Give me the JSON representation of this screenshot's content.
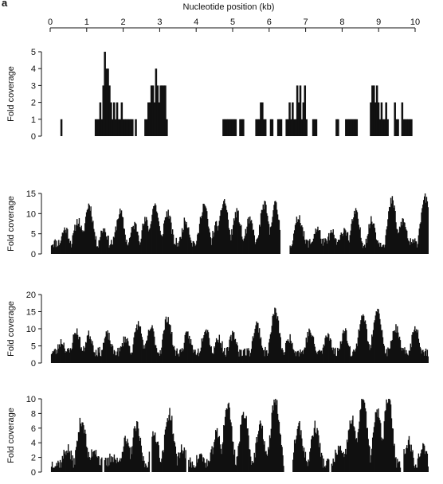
{
  "figure": {
    "panel_label": "a",
    "color": "#111111"
  },
  "chart_data": [
    {
      "type": "bar",
      "title": "",
      "xlabel": "Nucleotide position (kb)",
      "ylabel": "Fold coverage",
      "xlim": [
        0,
        10.5
      ],
      "ylim": [
        0,
        5
      ],
      "xticks": [
        0,
        1,
        2,
        3,
        4,
        5,
        6,
        7,
        8,
        9,
        10
      ],
      "yticks": [
        0,
        1,
        2,
        3,
        4,
        5
      ],
      "segments": [
        [
          0.28,
          0.42,
          [
            1
          ]
        ],
        [
          1.22,
          1.31,
          [
            1,
            1,
            1,
            2,
            1,
            3,
            5,
            4,
            4,
            3,
            2,
            1,
            2,
            1,
            2,
            1,
            1,
            2,
            1,
            1,
            1,
            1,
            1,
            1,
            1
          ]
        ],
        [
          2.32,
          2.42,
          [
            1
          ]
        ],
        [
          2.58,
          3.28,
          [
            1,
            1,
            2,
            2,
            3,
            3,
            2,
            4,
            3,
            2,
            3,
            3,
            3,
            3,
            1
          ]
        ],
        [
          4.72,
          5.12,
          [
            1,
            1,
            1,
            1,
            1,
            1,
            1,
            1,
            1
          ]
        ],
        [
          5.18,
          5.32,
          [
            1,
            1,
            1
          ]
        ],
        [
          5.62,
          5.95,
          [
            1,
            1,
            1,
            2,
            2,
            1,
            1
          ]
        ],
        [
          6.02,
          6.12,
          [
            1,
            1
          ]
        ],
        [
          6.22,
          6.38,
          [
            1,
            1,
            1
          ]
        ],
        [
          6.45,
          7.05,
          [
            1,
            1,
            2,
            1,
            2,
            1,
            1,
            3,
            2,
            3,
            1,
            2,
            3,
            1
          ]
        ],
        [
          7.18,
          7.35,
          [
            1,
            1,
            1
          ]
        ],
        [
          7.82,
          7.92,
          [
            1,
            1
          ]
        ],
        [
          8.08,
          8.48,
          [
            1,
            1,
            1,
            1,
            1,
            1,
            1,
            1
          ]
        ],
        [
          8.76,
          9.32,
          [
            2,
            3,
            3,
            2,
            3,
            2,
            1,
            2,
            1,
            1,
            2,
            1
          ]
        ],
        [
          9.42,
          9.55,
          [
            2,
            1,
            1
          ]
        ],
        [
          9.62,
          9.98,
          [
            2,
            1,
            1,
            1,
            1,
            1,
            1
          ]
        ]
      ]
    },
    {
      "type": "area",
      "title": "",
      "ylabel": "Fold coverage",
      "xlim": [
        0,
        10.5
      ],
      "ylim": [
        0,
        15
      ],
      "yticks": [
        0,
        5,
        10,
        15
      ],
      "gaps": [
        [
          6.28,
          6.55
        ]
      ],
      "seed": 11,
      "peaks": [
        [
          0.4,
          6
        ],
        [
          0.75,
          8
        ],
        [
          1.05,
          12
        ],
        [
          1.45,
          6
        ],
        [
          1.9,
          10
        ],
        [
          2.3,
          7
        ],
        [
          2.6,
          8
        ],
        [
          2.85,
          12
        ],
        [
          3.2,
          10
        ],
        [
          3.7,
          8
        ],
        [
          4.2,
          12
        ],
        [
          4.55,
          7
        ],
        [
          4.75,
          13
        ],
        [
          5.1,
          10
        ],
        [
          5.45,
          8
        ],
        [
          5.85,
          12
        ],
        [
          6.15,
          12
        ],
        [
          6.8,
          9
        ],
        [
          7.3,
          6
        ],
        [
          7.7,
          5
        ],
        [
          8.05,
          6
        ],
        [
          8.35,
          10
        ],
        [
          8.8,
          8
        ],
        [
          9.35,
          13
        ],
        [
          9.65,
          8
        ],
        [
          10.25,
          14
        ]
      ],
      "base": 2.5,
      "noise": 2.5
    },
    {
      "type": "area",
      "title": "",
      "ylabel": "Fold coverage",
      "xlim": [
        0,
        10.5
      ],
      "ylim": [
        0,
        20
      ],
      "yticks": [
        0,
        5,
        10,
        15,
        20
      ],
      "gaps": [],
      "seed": 23,
      "peaks": [
        [
          0.3,
          6
        ],
        [
          0.7,
          9
        ],
        [
          1.05,
          8
        ],
        [
          1.55,
          8
        ],
        [
          2.05,
          7
        ],
        [
          2.4,
          11
        ],
        [
          2.75,
          10
        ],
        [
          3.2,
          13
        ],
        [
          3.75,
          8
        ],
        [
          4.25,
          10
        ],
        [
          4.6,
          7
        ],
        [
          5.0,
          8
        ],
        [
          5.65,
          11
        ],
        [
          6.15,
          15
        ],
        [
          6.55,
          7
        ],
        [
          7.1,
          9
        ],
        [
          7.6,
          8
        ],
        [
          8.05,
          9
        ],
        [
          8.55,
          14
        ],
        [
          8.95,
          16
        ],
        [
          9.45,
          10
        ],
        [
          10.0,
          10
        ]
      ],
      "base": 3,
      "noise": 2.8
    },
    {
      "type": "area",
      "title": "",
      "ylabel": "Fold coverage",
      "xlim": [
        0,
        10.5
      ],
      "ylim": [
        0,
        10
      ],
      "yticks": [
        0,
        2,
        4,
        6,
        8,
        10
      ],
      "gaps": [
        [
          1.42,
          1.48
        ],
        [
          2.72,
          2.78
        ],
        [
          3.72,
          3.78
        ],
        [
          6.38,
          6.62
        ],
        [
          7.62,
          7.68
        ],
        [
          9.58,
          9.66
        ]
      ],
      "seed": 37,
      "peaks": [
        [
          0.45,
          3
        ],
        [
          0.85,
          7
        ],
        [
          1.2,
          3
        ],
        [
          1.7,
          2
        ],
        [
          2.05,
          4
        ],
        [
          2.35,
          6
        ],
        [
          2.85,
          5
        ],
        [
          3.25,
          8
        ],
        [
          3.6,
          3
        ],
        [
          4.1,
          2
        ],
        [
          4.55,
          5
        ],
        [
          4.85,
          9
        ],
        [
          5.3,
          8
        ],
        [
          5.75,
          6
        ],
        [
          6.15,
          10
        ],
        [
          6.8,
          6
        ],
        [
          7.25,
          6
        ],
        [
          7.9,
          3
        ],
        [
          8.25,
          7
        ],
        [
          8.55,
          10
        ],
        [
          8.95,
          8
        ],
        [
          9.25,
          10
        ],
        [
          9.8,
          4
        ],
        [
          10.2,
          3
        ]
      ],
      "base": 1,
      "noise": 1.8
    }
  ]
}
